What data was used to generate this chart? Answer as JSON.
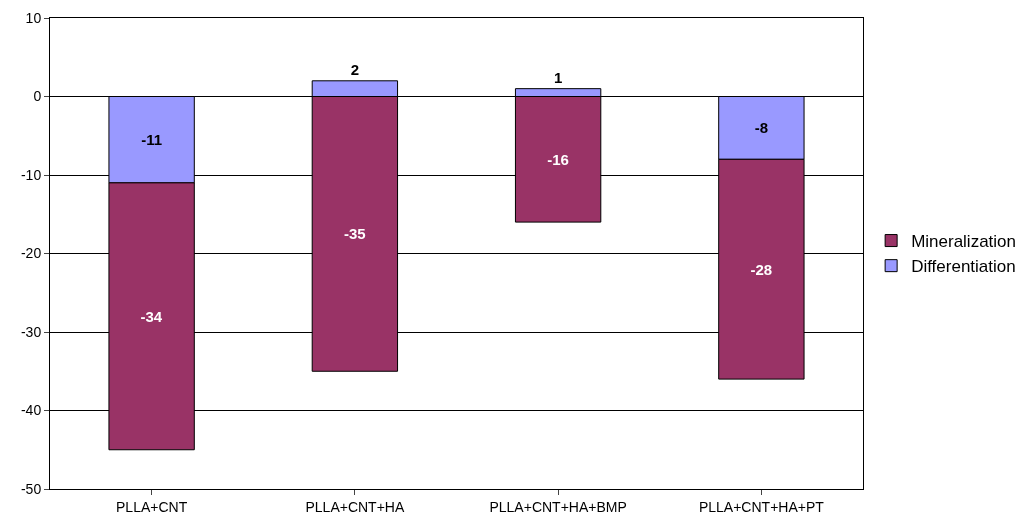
{
  "chart_data": {
    "type": "bar",
    "stacked": true,
    "categories": [
      "PLLA+CNT",
      "PLLA+CNT+HA",
      "PLLA+CNT+HA+BMP",
      "PLLA+CNT+HA+PT"
    ],
    "series": [
      {
        "name": "Differentiation",
        "color": "#9999ff",
        "values": [
          -11,
          2,
          1,
          -8
        ]
      },
      {
        "name": "Mineralization",
        "color": "#993366",
        "values": [
          -34,
          -35,
          -16,
          -28
        ]
      }
    ],
    "ylim": [
      -50,
      10
    ],
    "yticks": [
      -50,
      -40,
      -30,
      -20,
      -10,
      0,
      10
    ],
    "grid": "y",
    "legend": "right",
    "data_labels": true
  }
}
